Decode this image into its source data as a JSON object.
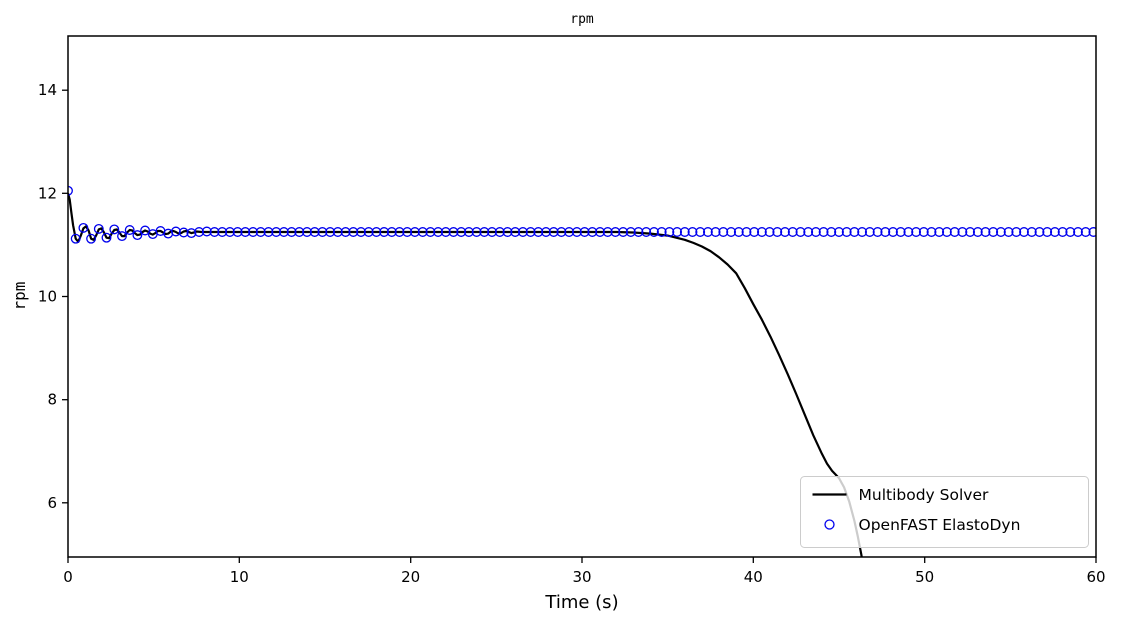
{
  "chart_data": {
    "type": "line",
    "title": "rpm",
    "xlabel": "Time (s)",
    "ylabel": "rpm",
    "xlim": [
      0,
      60
    ],
    "ylim": [
      4.95,
      15.05
    ],
    "xticks": [
      0,
      10,
      20,
      30,
      40,
      50,
      60
    ],
    "yticks": [
      6,
      8,
      10,
      12,
      14
    ],
    "grid": false,
    "frame_color": "#000000",
    "legend": {
      "position": "lower right",
      "border_color": "#cccccc",
      "background": "rgba(255,255,255,0.8)",
      "entries": [
        "Multibody Solver",
        "OpenFAST ElastoDyn"
      ]
    },
    "series": [
      {
        "name": "Multibody Solver",
        "style": "line",
        "color": "#000000",
        "line_width": 2.2,
        "points": [
          [
            0,
            12.0
          ],
          [
            0.1,
            11.88
          ],
          [
            0.2,
            11.62
          ],
          [
            0.3,
            11.38
          ],
          [
            0.45,
            11.12
          ],
          [
            0.6,
            11.06
          ],
          [
            0.75,
            11.18
          ],
          [
            0.9,
            11.32
          ],
          [
            1.05,
            11.36
          ],
          [
            1.2,
            11.28
          ],
          [
            1.35,
            11.12
          ],
          [
            1.5,
            11.1
          ],
          [
            1.65,
            11.19
          ],
          [
            1.8,
            11.3
          ],
          [
            1.95,
            11.32
          ],
          [
            2.1,
            11.24
          ],
          [
            2.25,
            11.14
          ],
          [
            2.4,
            11.13
          ],
          [
            2.55,
            11.22
          ],
          [
            2.7,
            11.29
          ],
          [
            2.85,
            11.3
          ],
          [
            3.0,
            11.24
          ],
          [
            3.15,
            11.17
          ],
          [
            3.3,
            11.17
          ],
          [
            3.45,
            11.24
          ],
          [
            3.6,
            11.29
          ],
          [
            3.75,
            11.28
          ],
          [
            3.9,
            11.23
          ],
          [
            4.05,
            11.19
          ],
          [
            4.2,
            11.2
          ],
          [
            4.35,
            11.25
          ],
          [
            4.5,
            11.28
          ],
          [
            4.65,
            11.26
          ],
          [
            4.8,
            11.22
          ],
          [
            4.95,
            11.2
          ],
          [
            5.1,
            11.23
          ],
          [
            5.25,
            11.27
          ],
          [
            5.4,
            11.27
          ],
          [
            5.55,
            11.24
          ],
          [
            5.7,
            11.21
          ],
          [
            5.85,
            11.22
          ],
          [
            6.0,
            11.26
          ],
          [
            6.15,
            11.27
          ],
          [
            6.3,
            11.25
          ],
          [
            6.45,
            11.22
          ],
          [
            6.6,
            11.23
          ],
          [
            6.75,
            11.26
          ],
          [
            6.9,
            11.27
          ],
          [
            7.05,
            11.25
          ],
          [
            7.2,
            11.23
          ],
          [
            7.35,
            11.24
          ],
          [
            7.5,
            11.26
          ],
          [
            7.8,
            11.25
          ],
          [
            8.5,
            11.25
          ],
          [
            10,
            11.25
          ],
          [
            14,
            11.25
          ],
          [
            18,
            11.25
          ],
          [
            22,
            11.25
          ],
          [
            26,
            11.25
          ],
          [
            30,
            11.25
          ],
          [
            32,
            11.25
          ],
          [
            33,
            11.24
          ],
          [
            34,
            11.22
          ],
          [
            35,
            11.18
          ],
          [
            36,
            11.1
          ],
          [
            36.5,
            11.04
          ],
          [
            37,
            10.97
          ],
          [
            37.5,
            10.88
          ],
          [
            38,
            10.76
          ],
          [
            38.5,
            10.62
          ],
          [
            39,
            10.45
          ],
          [
            39.5,
            10.16
          ],
          [
            40,
            9.85
          ],
          [
            40.5,
            9.55
          ],
          [
            41,
            9.22
          ],
          [
            41.5,
            8.87
          ],
          [
            42,
            8.5
          ],
          [
            42.5,
            8.11
          ],
          [
            43,
            7.71
          ],
          [
            43.5,
            7.31
          ],
          [
            44,
            6.95
          ],
          [
            44.3,
            6.76
          ],
          [
            44.6,
            6.62
          ],
          [
            45,
            6.48
          ],
          [
            45.3,
            6.3
          ],
          [
            45.6,
            6.02
          ],
          [
            45.9,
            5.65
          ],
          [
            46.1,
            5.35
          ],
          [
            46.3,
            5.0
          ],
          [
            46.45,
            4.7
          ]
        ]
      },
      {
        "name": "OpenFAST ElastoDyn",
        "style": "markers",
        "marker": "circle",
        "marker_radius": 4.3,
        "color": "#0000ee",
        "points": [
          [
            0,
            12.05
          ],
          [
            0.45,
            11.12
          ],
          [
            0.9,
            11.33
          ],
          [
            1.35,
            11.12
          ],
          [
            1.8,
            11.31
          ],
          [
            2.25,
            11.14
          ],
          [
            2.7,
            11.3
          ],
          [
            3.15,
            11.17
          ],
          [
            3.6,
            11.29
          ],
          [
            4.05,
            11.19
          ],
          [
            4.5,
            11.28
          ],
          [
            4.95,
            11.21
          ],
          [
            5.4,
            11.27
          ],
          [
            5.85,
            11.22
          ],
          [
            6.3,
            11.26
          ],
          [
            6.75,
            11.24
          ],
          [
            7.2,
            11.23
          ],
          [
            7.65,
            11.25
          ],
          [
            8.1,
            11.26
          ],
          [
            8.55,
            11.25
          ]
        ],
        "steady": {
          "from": 9,
          "to": 60,
          "step": 0.45,
          "value": 11.25
        }
      }
    ]
  }
}
